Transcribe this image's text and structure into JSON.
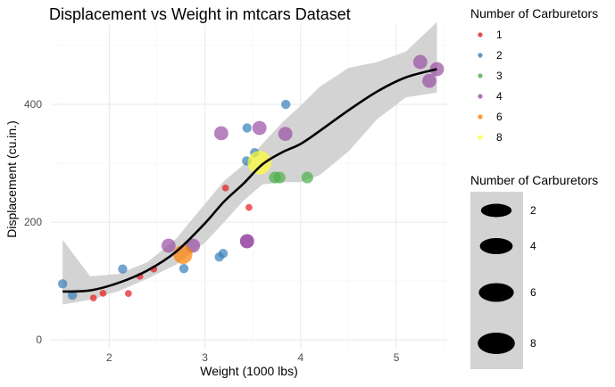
{
  "chart_data": {
    "type": "scatter",
    "title": "Displacement vs Weight in mtcars Dataset",
    "xlabel": "Weight (1000 lbs)",
    "ylabel": "Displacement (cu.in.)",
    "xlim": [
      1.39,
      5.55
    ],
    "ylim": [
      -15,
      535
    ],
    "x_ticks": [
      2,
      3,
      4,
      5
    ],
    "x_tick_labels": [
      "2",
      "3",
      "4",
      "5"
    ],
    "y_ticks": [
      0,
      200,
      400
    ],
    "y_tick_labels": [
      "0",
      "200",
      "400"
    ],
    "grid": true,
    "legend_color": {
      "title": "Number of Carburetors",
      "entries": [
        {
          "label": "1",
          "color": "#E41A1C"
        },
        {
          "label": "2",
          "color": "#377EB8"
        },
        {
          "label": "3",
          "color": "#4DAF4A"
        },
        {
          "label": "4",
          "color": "#984EA3"
        },
        {
          "label": "6",
          "color": "#FF7F00"
        },
        {
          "label": "8",
          "color": "#FFFF33"
        }
      ]
    },
    "legend_size": {
      "title": "Number of Carburetors",
      "entries": [
        {
          "label": "2",
          "value": 2
        },
        {
          "label": "4",
          "value": 4
        },
        {
          "label": "6",
          "value": 6
        },
        {
          "label": "8",
          "value": 8
        }
      ]
    },
    "points": [
      {
        "x": 2.62,
        "y": 160,
        "carb": 4
      },
      {
        "x": 2.875,
        "y": 160,
        "carb": 4
      },
      {
        "x": 2.32,
        "y": 108,
        "carb": 1
      },
      {
        "x": 3.215,
        "y": 258,
        "carb": 1
      },
      {
        "x": 3.44,
        "y": 360,
        "carb": 2
      },
      {
        "x": 3.46,
        "y": 225,
        "carb": 1
      },
      {
        "x": 3.57,
        "y": 360,
        "carb": 4
      },
      {
        "x": 3.19,
        "y": 146.7,
        "carb": 2
      },
      {
        "x": 3.15,
        "y": 140.8,
        "carb": 2
      },
      {
        "x": 3.44,
        "y": 167.6,
        "carb": 4
      },
      {
        "x": 3.44,
        "y": 167.6,
        "carb": 4
      },
      {
        "x": 4.07,
        "y": 275.8,
        "carb": 3
      },
      {
        "x": 3.73,
        "y": 275.8,
        "carb": 3
      },
      {
        "x": 3.78,
        "y": 275.8,
        "carb": 3
      },
      {
        "x": 5.25,
        "y": 472,
        "carb": 4
      },
      {
        "x": 5.424,
        "y": 460,
        "carb": 4
      },
      {
        "x": 5.345,
        "y": 440,
        "carb": 4
      },
      {
        "x": 2.2,
        "y": 78.7,
        "carb": 1
      },
      {
        "x": 1.615,
        "y": 75.7,
        "carb": 2
      },
      {
        "x": 1.835,
        "y": 71.1,
        "carb": 1
      },
      {
        "x": 2.465,
        "y": 120.1,
        "carb": 1
      },
      {
        "x": 3.52,
        "y": 318,
        "carb": 2
      },
      {
        "x": 3.435,
        "y": 304,
        "carb": 2
      },
      {
        "x": 3.84,
        "y": 350,
        "carb": 4
      },
      {
        "x": 3.845,
        "y": 400,
        "carb": 2
      },
      {
        "x": 1.935,
        "y": 79,
        "carb": 1
      },
      {
        "x": 2.14,
        "y": 120.3,
        "carb": 2
      },
      {
        "x": 1.513,
        "y": 95.1,
        "carb": 2
      },
      {
        "x": 3.17,
        "y": 351,
        "carb": 4
      },
      {
        "x": 2.77,
        "y": 145,
        "carb": 6
      },
      {
        "x": 3.57,
        "y": 301,
        "carb": 8
      },
      {
        "x": 2.78,
        "y": 121,
        "carb": 2
      }
    ],
    "smooth": {
      "x": [
        1.513,
        1.8,
        2.1,
        2.4,
        2.7,
        3.0,
        3.2,
        3.4,
        3.6,
        3.8,
        4.0,
        4.2,
        4.5,
        4.8,
        5.1,
        5.424
      ],
      "y": [
        82,
        84,
        97,
        118,
        150,
        198,
        235,
        265,
        298,
        318,
        333,
        355,
        390,
        422,
        446,
        460
      ],
      "lower": [
        60,
        68,
        83,
        104,
        128,
        165,
        200,
        236,
        264,
        268,
        268,
        280,
        320,
        375,
        412,
        420
      ],
      "upper": [
        170,
        108,
        112,
        132,
        172,
        231,
        270,
        297,
        333,
        368,
        398,
        430,
        462,
        472,
        490,
        540
      ]
    }
  }
}
